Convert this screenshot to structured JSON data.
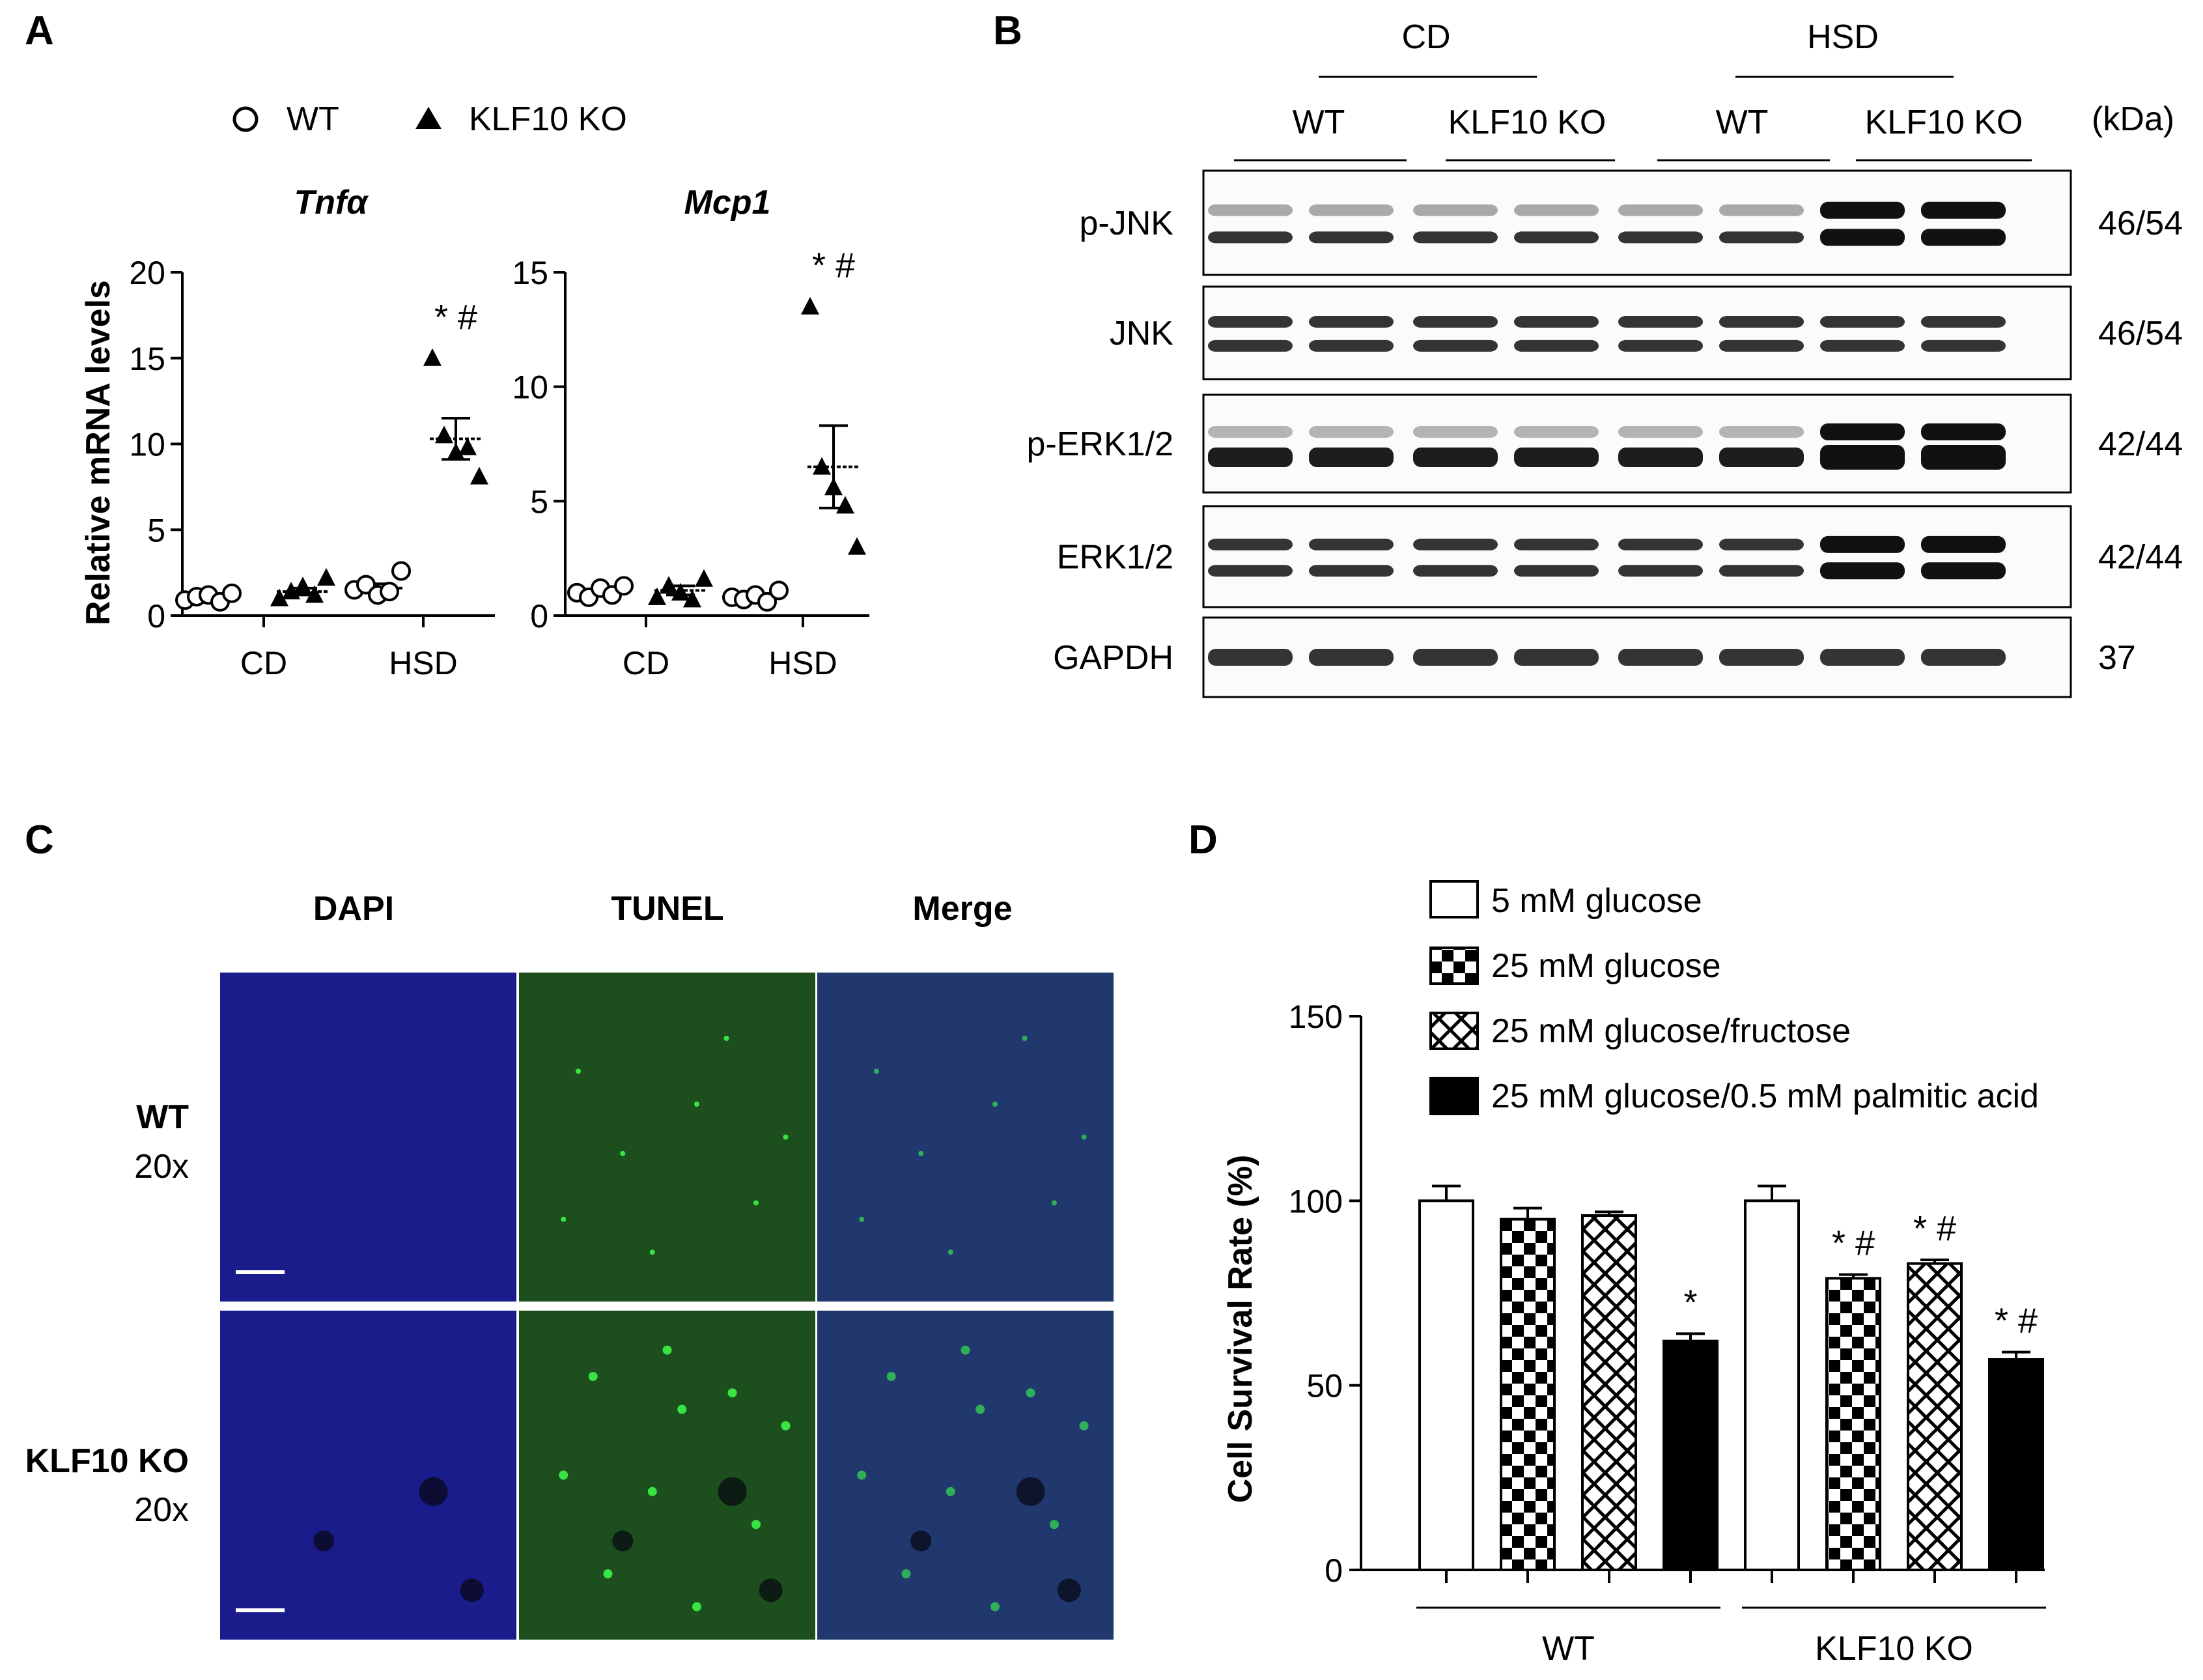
{
  "panels": {
    "A": {
      "label": "A",
      "legend": [
        {
          "label": "WT",
          "marker": "open-circle"
        },
        {
          "label": "KLF10 KO",
          "marker": "filled-triangle"
        }
      ],
      "ylabel": "Relative mRNA levels",
      "group_labels": [
        "CD",
        "HSD"
      ]
    },
    "B": {
      "label": "B",
      "diet_labels": [
        "CD",
        "HSD"
      ],
      "genotype_labels": [
        "WT",
        "KLF10 KO",
        "WT",
        "KLF10 KO"
      ],
      "kda_header": "(kDa)",
      "rows": [
        {
          "name": "p-JNK",
          "kda": "46/54"
        },
        {
          "name": "JNK",
          "kda": "46/54"
        },
        {
          "name": "p-ERK1/2",
          "kda": "42/44"
        },
        {
          "name": "ERK1/2",
          "kda": "42/44"
        },
        {
          "name": "GAPDH",
          "kda": "37"
        }
      ]
    },
    "C": {
      "label": "C",
      "columns": [
        "DAPI",
        "TUNEL",
        "Merge"
      ],
      "rows": [
        {
          "label": "WT",
          "magnification": "20x"
        },
        {
          "label": "KLF10 KO",
          "magnification": "20x"
        }
      ],
      "colors": {
        "dapi": "#1b1c8c",
        "tunel": "#1d4e1e",
        "merge": "#20386e",
        "spot": "#3cff4a"
      }
    },
    "D": {
      "label": "D",
      "legend": [
        {
          "label": "5 mM glucose",
          "pattern": "white"
        },
        {
          "label": "25 mM glucose",
          "pattern": "checker"
        },
        {
          "label": "25 mM glucose/fructose",
          "pattern": "crosshatch"
        },
        {
          "label": "25 mM glucose/0.5 mM palmitic acid",
          "pattern": "black"
        }
      ],
      "group_labels": [
        "WT",
        "KLF10 KO"
      ]
    }
  },
  "chart_data": [
    {
      "type": "scatter",
      "title": "Tnfα",
      "ylabel": "Relative mRNA levels",
      "categories": [
        "CD",
        "HSD"
      ],
      "ylim": [
        0,
        20
      ],
      "yticks": [
        0,
        5,
        10,
        15,
        20
      ],
      "series": [
        {
          "name": "WT",
          "groups": [
            {
              "category": "CD",
              "points": [
                0.9,
                1.1,
                1.2,
                0.8,
                1.3
              ],
              "mean": 1.05,
              "sem": 0.1
            },
            {
              "category": "HSD",
              "points": [
                1.5,
                1.8,
                1.2,
                1.4,
                2.6
              ],
              "mean": 1.6,
              "sem": 0.25
            }
          ]
        },
        {
          "name": "KLF10 KO",
          "groups": [
            {
              "category": "CD",
              "points": [
                1.0,
                1.4,
                1.7,
                1.2,
                2.2
              ],
              "mean": 1.4,
              "sem": 0.2
            },
            {
              "category": "HSD",
              "points": [
                15.0,
                10.5,
                9.5,
                9.8,
                8.1
              ],
              "mean": 10.3,
              "sem": 1.2
            }
          ]
        }
      ],
      "annotations": [
        {
          "category": "HSD",
          "series": "KLF10 KO",
          "text": "* #"
        }
      ]
    },
    {
      "type": "scatter",
      "title": "Mcp1",
      "categories": [
        "CD",
        "HSD"
      ],
      "ylim": [
        0,
        15
      ],
      "yticks": [
        0,
        5,
        10,
        15
      ],
      "series": [
        {
          "name": "WT",
          "groups": [
            {
              "category": "CD",
              "points": [
                1.0,
                0.8,
                1.2,
                0.9,
                1.3
              ],
              "mean": 1.0,
              "sem": 0.1
            },
            {
              "category": "HSD",
              "points": [
                0.8,
                0.7,
                0.9,
                0.6,
                1.1
              ],
              "mean": 0.85,
              "sem": 0.1
            }
          ]
        },
        {
          "name": "KLF10 KO",
          "groups": [
            {
              "category": "CD",
              "points": [
                0.8,
                1.3,
                1.0,
                0.7,
                1.6
              ],
              "mean": 1.1,
              "sem": 0.2
            },
            {
              "category": "HSD",
              "points": [
                13.5,
                6.5,
                5.6,
                4.8,
                3.0
              ],
              "mean": 6.5,
              "sem": 1.8
            }
          ]
        }
      ],
      "annotations": [
        {
          "category": "HSD",
          "series": "KLF10 KO",
          "text": "* #"
        }
      ]
    },
    {
      "type": "bar",
      "ylabel": "Cell Survival Rate (%)",
      "ylim": [
        0,
        150
      ],
      "yticks": [
        0,
        50,
        100,
        150
      ],
      "categories": [
        "WT",
        "KLF10 KO"
      ],
      "series": [
        {
          "name": "5 mM glucose",
          "pattern": "white",
          "values": [
            100,
            100
          ],
          "errors": [
            4,
            4
          ],
          "annotations": [
            "",
            ""
          ]
        },
        {
          "name": "25 mM glucose",
          "pattern": "checker",
          "values": [
            95,
            79
          ],
          "errors": [
            3,
            1
          ],
          "annotations": [
            "",
            "* #"
          ]
        },
        {
          "name": "25 mM glucose/fructose",
          "pattern": "crosshatch",
          "values": [
            96,
            83
          ],
          "errors": [
            1,
            1
          ],
          "annotations": [
            "",
            "* #"
          ]
        },
        {
          "name": "25 mM glucose/0.5 mM palmitic acid",
          "pattern": "black",
          "values": [
            62,
            57
          ],
          "errors": [
            2,
            2
          ],
          "annotations": [
            "*",
            "* #"
          ]
        }
      ]
    }
  ]
}
